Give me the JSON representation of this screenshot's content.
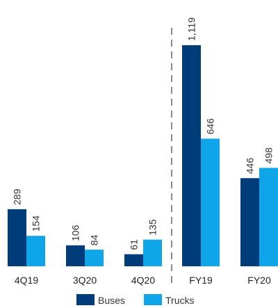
{
  "chart_data": {
    "type": "bar",
    "categories": [
      "4Q19",
      "3Q20",
      "4Q20",
      "FY19",
      "FY20"
    ],
    "series": [
      {
        "name": "Buses",
        "values": [
          289,
          106,
          61,
          1119,
          446
        ],
        "labels": [
          "289",
          "106",
          "61",
          "1,119",
          "446"
        ],
        "color": "#003b7a"
      },
      {
        "name": "Trucks",
        "values": [
          154,
          84,
          135,
          646,
          498
        ],
        "labels": [
          "154",
          "84",
          "135",
          "646",
          "498"
        ],
        "color": "#0ea5e9"
      }
    ],
    "separator_after_index": 2,
    "legend_position": "bottom-center",
    "grid": false,
    "ylim": [
      0,
      1119
    ]
  }
}
